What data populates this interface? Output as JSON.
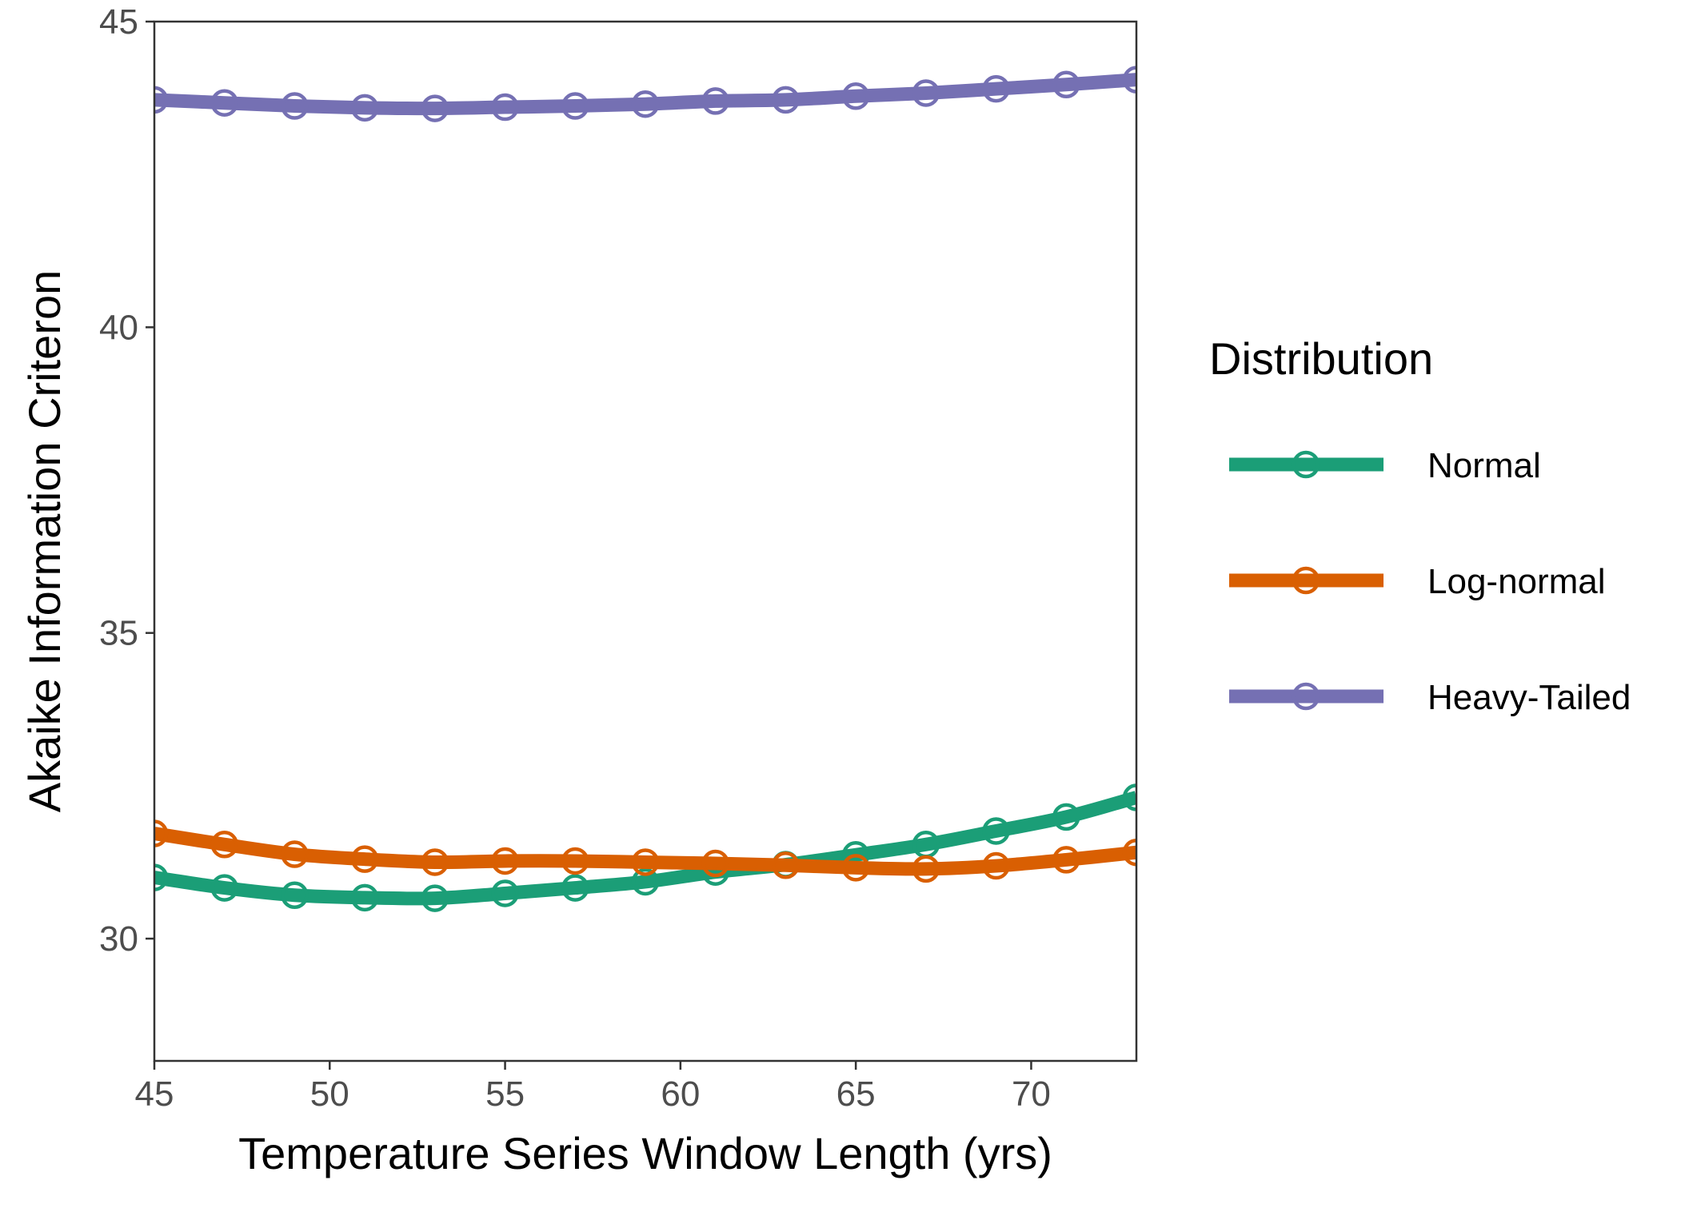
{
  "chart_data": {
    "type": "line",
    "title": "",
    "xlabel": "Temperature Series Window Length (yrs)",
    "ylabel": "Akaike Information Criteron",
    "xlim": [
      45,
      73
    ],
    "ylim": [
      28,
      45
    ],
    "xticks": [
      45,
      50,
      55,
      60,
      65,
      70
    ],
    "yticks": [
      30,
      35,
      40,
      45
    ],
    "grid": false,
    "legend": {
      "title": "Distribution",
      "position": "right"
    },
    "x": [
      45,
      47,
      49,
      51,
      53,
      55,
      57,
      59,
      61,
      63,
      65,
      67,
      69,
      71,
      73
    ],
    "series": [
      {
        "name": "Normal",
        "color": "#1b9e77",
        "values": [
          31.0,
          30.83,
          30.71,
          30.67,
          30.66,
          30.74,
          30.83,
          30.93,
          31.09,
          31.21,
          31.37,
          31.54,
          31.76,
          31.99,
          32.31
        ]
      },
      {
        "name": "Log-normal",
        "color": "#d95f02",
        "values": [
          31.72,
          31.54,
          31.38,
          31.3,
          31.25,
          31.27,
          31.27,
          31.25,
          31.23,
          31.2,
          31.16,
          31.14,
          31.19,
          31.29,
          31.41
        ]
      },
      {
        "name": "Heavy-Tailed",
        "color": "#7570b3",
        "values": [
          43.72,
          43.67,
          43.62,
          43.59,
          43.58,
          43.6,
          43.62,
          43.65,
          43.7,
          43.72,
          43.78,
          43.83,
          43.9,
          43.97,
          44.05
        ]
      }
    ]
  }
}
